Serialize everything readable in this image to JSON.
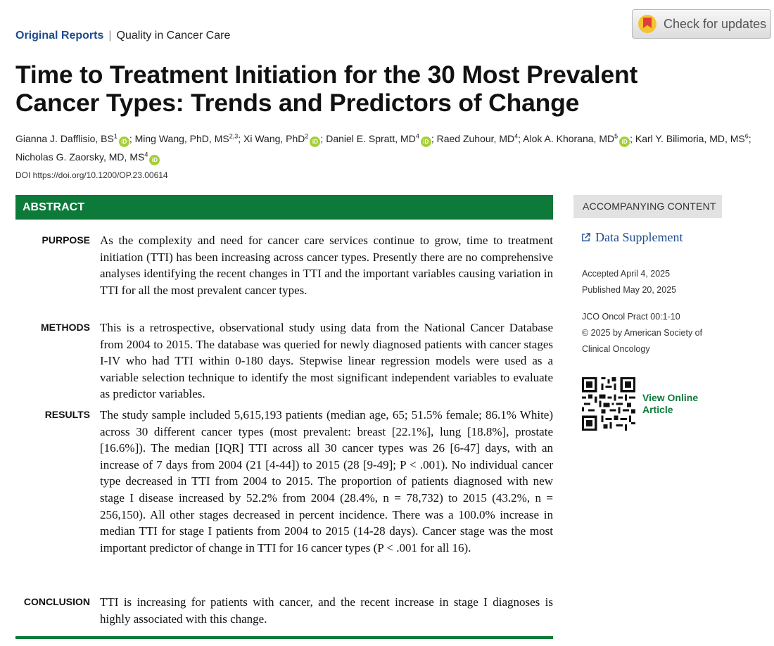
{
  "header": {
    "section": "Original Reports",
    "separator": "|",
    "subsection": "Quality in Cancer Care",
    "check_updates_label": "Check for updates"
  },
  "title": "Time to Treatment Initiation for the 30 Most Prevalent Cancer Types: Trends and Predictors of Change",
  "authors": [
    {
      "name": "Gianna J. Dafflisio, BS",
      "sup": "1",
      "orcid": true,
      "sep": ";"
    },
    {
      "name": "Ming Wang, PhD, MS",
      "sup": "2,3",
      "orcid": false,
      "sep": ";"
    },
    {
      "name": "Xi Wang, PhD",
      "sup": "2",
      "orcid": true,
      "sep": ";"
    },
    {
      "name": "Daniel E. Spratt, MD",
      "sup": "4",
      "orcid": true,
      "sep": ";"
    },
    {
      "name": "Raed Zuhour, MD",
      "sup": "4",
      "orcid": false,
      "sep": ";"
    },
    {
      "name": "Alok A. Khorana, MD",
      "sup": "5",
      "orcid": true,
      "sep": ";"
    },
    {
      "name": "Karl Y. Bilimoria, MD, MS",
      "sup": "6",
      "orcid": false,
      "sep": ";"
    },
    {
      "name": "Nicholas G. Zaorsky, MD, MS",
      "sup": "4",
      "orcid": true,
      "sep": ""
    }
  ],
  "orcid_glyph": "iD",
  "doi": "DOI https://doi.org/10.1200/OP.23.00614",
  "abstract": {
    "heading": "ABSTRACT",
    "sections": [
      {
        "label": "PURPOSE",
        "text": "As the complexity and need for cancer care services continue to grow, time to treatment initiation (TTI) has been increasing across cancer types. Presently there are no comprehensive analyses identifying the recent changes in TTI and the important variables causing variation in TTI for all the most prevalent cancer types."
      },
      {
        "label": "METHODS",
        "text": "This is a retrospective, observational study using data from the National Cancer Database from 2004 to 2015. The database was queried for newly diagnosed patients with cancer stages I-IV who had TTI within 0-180 days. Stepwise linear regression models were used as a variable selection technique to identify the most significant independent variables to evaluate as predictor variables."
      },
      {
        "label": "RESULTS",
        "text": "The study sample included 5,615,193 patients (median age, 65; 51.5% female; 86.1% White) across 30 different cancer types (most prevalent: breast [22.1%], lung [18.8%], prostate [16.6%]). The median [IQR] TTI across all 30 cancer types was 26 [6-47] days, with an increase of 7 days from 2004 (21 [4-44]) to 2015 (28 [9-49]; P < .001). No individual cancer type decreased in TTI from 2004 to 2015. The proportion of patients diagnosed with new stage I disease increased by 52.2% from 2004 (28.4%, n = 78,732) to 2015 (43.2%, n = 256,150). All other stages decreased in percent incidence. There was a 100.0% increase in median TTI for stage I patients from 2004 to 2015 (14-28 days). Cancer stage was the most important predictor of change in TTI for 16 cancer types (P < .001 for all 16)."
      },
      {
        "label": "CONCLUSION",
        "text": "TTI is increasing for patients with cancer, and the recent increase in stage I diagnoses is highly associated with this change."
      }
    ]
  },
  "sidebar": {
    "accompanying_title": "ACCOMPANYING CONTENT",
    "supplement_link": "Data Supplement",
    "accepted": "Accepted April 4, 2025",
    "published": "Published May 20, 2025",
    "journal": "JCO Oncol Pract 00:1-10",
    "copyright_line1": "© 2025 by American Society of",
    "copyright_line2": "Clinical Oncology",
    "view_online_line1": "View Online",
    "view_online_line2": "Article"
  },
  "colors": {
    "brand_green": "#0d7a3a",
    "link_blue": "#1e4b8f",
    "orcid_green": "#a6ce39"
  }
}
